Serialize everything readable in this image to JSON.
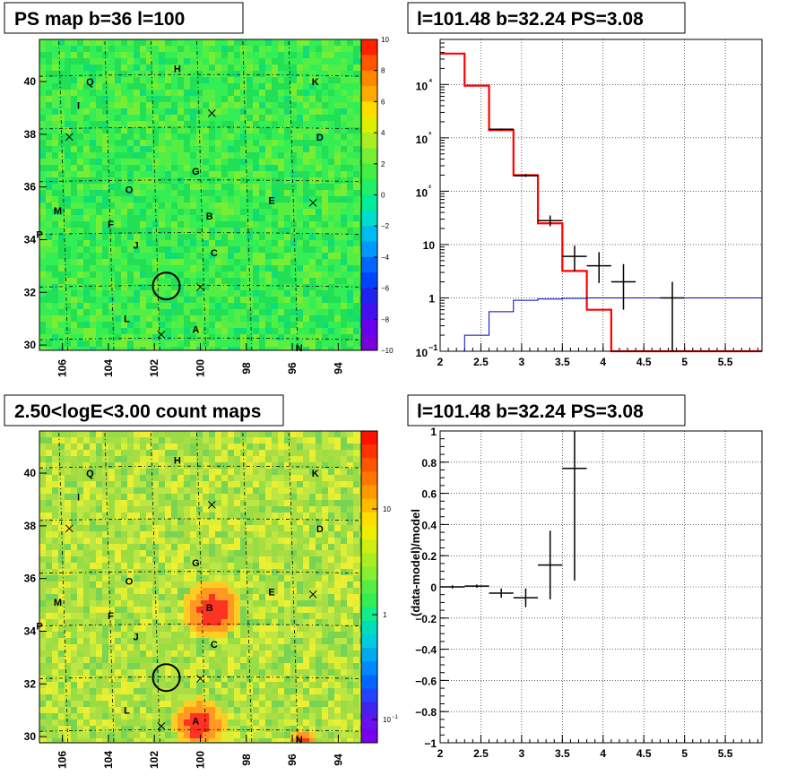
{
  "chart_data": [
    {
      "type": "heatmap",
      "title": "PS map b=36 l=100",
      "xlim": [
        107,
        93
      ],
      "ylim": [
        29.8,
        41.6
      ],
      "x_ticks": [
        "106",
        "104",
        "102",
        "100",
        "98",
        "96",
        "94"
      ],
      "y_ticks": [
        "30",
        "32",
        "34",
        "36",
        "38",
        "40"
      ],
      "colorbar": {
        "range": [
          -10,
          10
        ],
        "ticks": [
          "10",
          "8",
          "6",
          "4",
          "2",
          "0",
          "−2",
          "−4",
          "−6",
          "−8",
          "−10"
        ]
      },
      "sources": [
        {
          "label": "H",
          "l": 101.0,
          "b": 40.5
        },
        {
          "label": "Q",
          "l": 104.8,
          "b": 40.0
        },
        {
          "label": "K",
          "l": 95.0,
          "b": 40.0
        },
        {
          "label": "I",
          "l": 105.3,
          "b": 39.1
        },
        {
          "label": "D",
          "l": 94.8,
          "b": 37.9
        },
        {
          "label": "G",
          "l": 100.2,
          "b": 36.6
        },
        {
          "label": "O",
          "l": 103.1,
          "b": 35.9
        },
        {
          "label": "E",
          "l": 96.9,
          "b": 35.5
        },
        {
          "label": "M",
          "l": 106.2,
          "b": 35.1
        },
        {
          "label": "B",
          "l": 99.6,
          "b": 34.9
        },
        {
          "label": "F",
          "l": 103.9,
          "b": 34.6
        },
        {
          "label": "P",
          "l": 107.0,
          "b": 34.2
        },
        {
          "label": "J",
          "l": 102.8,
          "b": 33.8
        },
        {
          "label": "C",
          "l": 99.4,
          "b": 33.5
        },
        {
          "label": "L",
          "l": 103.2,
          "b": 31.0
        },
        {
          "label": "A",
          "l": 100.2,
          "b": 30.6
        },
        {
          "label": "N",
          "l": 95.7,
          "b": 29.9
        }
      ],
      "crosses": [
        {
          "l": 99.5,
          "b": 38.8
        },
        {
          "l": 105.7,
          "b": 37.9
        },
        {
          "l": 95.1,
          "b": 35.4
        },
        {
          "l": 100.0,
          "b": 32.2
        },
        {
          "l": 101.7,
          "b": 30.4
        }
      ],
      "circle": {
        "l": 101.48,
        "b": 32.24
      }
    },
    {
      "type": "line",
      "title": "l=101.48 b=32.24 PS=3.08",
      "xlim": [
        2,
        5.95
      ],
      "ylim_log": [
        0.1,
        70000
      ],
      "yscale": "log",
      "grid": true,
      "x_ticks": [
        "2",
        "2.5",
        "3",
        "3.5",
        "4",
        "4.5",
        "5",
        "5.5"
      ],
      "y_ticks": [
        "10−1",
        "1",
        "10",
        "10²",
        "10³",
        "10⁴"
      ],
      "x_edges": [
        2,
        2.3,
        2.6,
        2.9,
        3.2,
        3.5,
        3.8,
        4.1,
        4.4,
        4.7,
        5.0,
        5.3,
        5.6,
        5.95
      ],
      "series": [
        {
          "color": "#ff0000",
          "values": [
            38000,
            9500,
            1400,
            200,
            25,
            3.2,
            0.6,
            0.1,
            0.1,
            0.1,
            0.1,
            0.1,
            0.1
          ]
        },
        {
          "color": "#0000cc",
          "values": [
            0.1,
            0.2,
            0.55,
            0.9,
            0.95,
            0.98,
            1.0,
            1.0,
            1.0,
            1.0,
            1.0,
            1.0,
            1.0
          ]
        }
      ],
      "points": [
        {
          "x": 2.75,
          "y": 1450,
          "xerr": 0.15,
          "ylo": 1400,
          "yhi": 1500
        },
        {
          "x": 3.05,
          "y": 195,
          "xerr": 0.15,
          "ylo": 185,
          "yhi": 210
        },
        {
          "x": 3.35,
          "y": 28,
          "xerr": 0.15,
          "ylo": 22,
          "yhi": 35
        },
        {
          "x": 3.65,
          "y": 6,
          "xerr": 0.15,
          "ylo": 3.2,
          "yhi": 9.5
        },
        {
          "x": 3.95,
          "y": 4,
          "xerr": 0.15,
          "ylo": 1.9,
          "yhi": 7.2
        },
        {
          "x": 4.25,
          "y": 2,
          "xerr": 0.15,
          "ylo": 0.6,
          "yhi": 4.3
        },
        {
          "x": 4.85,
          "y": 1,
          "xerr": 0.15,
          "ylo": 0.1,
          "yhi": 2.0
        }
      ]
    },
    {
      "type": "heatmap",
      "title": "2.50<logE<3.00 count maps",
      "xlim": [
        107,
        93
      ],
      "ylim": [
        29.8,
        41.6
      ],
      "x_ticks": [
        "106",
        "104",
        "102",
        "100",
        "98",
        "96",
        "94"
      ],
      "y_ticks": [
        "30",
        "32",
        "34",
        "36",
        "38",
        "40"
      ],
      "colorbar": {
        "scale": "log",
        "ticks": [
          "10",
          "1",
          "10−1"
        ]
      }
    },
    {
      "type": "scatter",
      "title": "l=101.48 b=32.24 PS=3.08",
      "xlim": [
        2,
        5.95
      ],
      "ylim": [
        -1,
        1
      ],
      "ylabel": "(data-model)/model",
      "grid": true,
      "x_ticks": [
        "2",
        "2.5",
        "3",
        "3.5",
        "4",
        "4.5",
        "5",
        "5.5"
      ],
      "y_ticks": [
        "1",
        "0.8",
        "0.6",
        "0.4",
        "0.2",
        "0",
        "−0.2",
        "−0.4",
        "−0.6",
        "−0.8",
        "−1"
      ],
      "points": [
        {
          "x": 2.15,
          "y": 0.0,
          "xerr": 0.15,
          "ylo": -0.01,
          "yhi": 0.01
        },
        {
          "x": 2.45,
          "y": 0.005,
          "xerr": 0.15,
          "ylo": -0.005,
          "yhi": 0.015
        },
        {
          "x": 2.75,
          "y": -0.04,
          "xerr": 0.15,
          "ylo": -0.07,
          "yhi": -0.01
        },
        {
          "x": 3.05,
          "y": -0.07,
          "xerr": 0.15,
          "ylo": -0.13,
          "yhi": -0.01
        },
        {
          "x": 3.35,
          "y": 0.14,
          "xerr": 0.15,
          "ylo": -0.08,
          "yhi": 0.36
        },
        {
          "x": 3.65,
          "y": 0.76,
          "xerr": 0.15,
          "ylo": 0.04,
          "yhi": 1.0
        }
      ]
    }
  ]
}
